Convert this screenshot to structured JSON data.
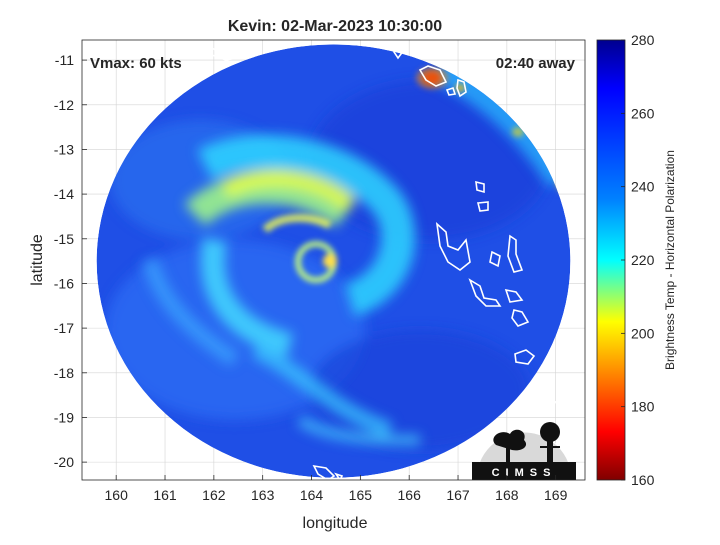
{
  "chart_data": {
    "type": "heatmap",
    "title": "Kevin: 02-Mar-2023 10:30:00",
    "xlabel": "longitude",
    "ylabel": "latitude",
    "xlim": [
      159.3,
      169.6
    ],
    "ylim": [
      -20.4,
      -10.55
    ],
    "xticks": [
      160,
      161,
      162,
      163,
      164,
      165,
      166,
      167,
      168,
      169
    ],
    "yticks": [
      -11,
      -12,
      -13,
      -14,
      -15,
      -16,
      -17,
      -18,
      -19,
      -20
    ],
    "grid": true,
    "annotations": {
      "top_left": "Vmax: 60 kts",
      "top_right": "02:40 away"
    },
    "colorbar": {
      "label": "Brightness Temp - Horizontal Polarization",
      "min": 160,
      "max": 280,
      "ticks": [
        280,
        260,
        240,
        220,
        200,
        180,
        160
      ]
    },
    "swath": {
      "center": [
        164.45,
        -15.5
      ],
      "radius_lon": 4.85,
      "radius_lat": 4.85
    },
    "storm_center": [
      164.45,
      -15.4
    ],
    "logo_text": "CIMSS"
  }
}
